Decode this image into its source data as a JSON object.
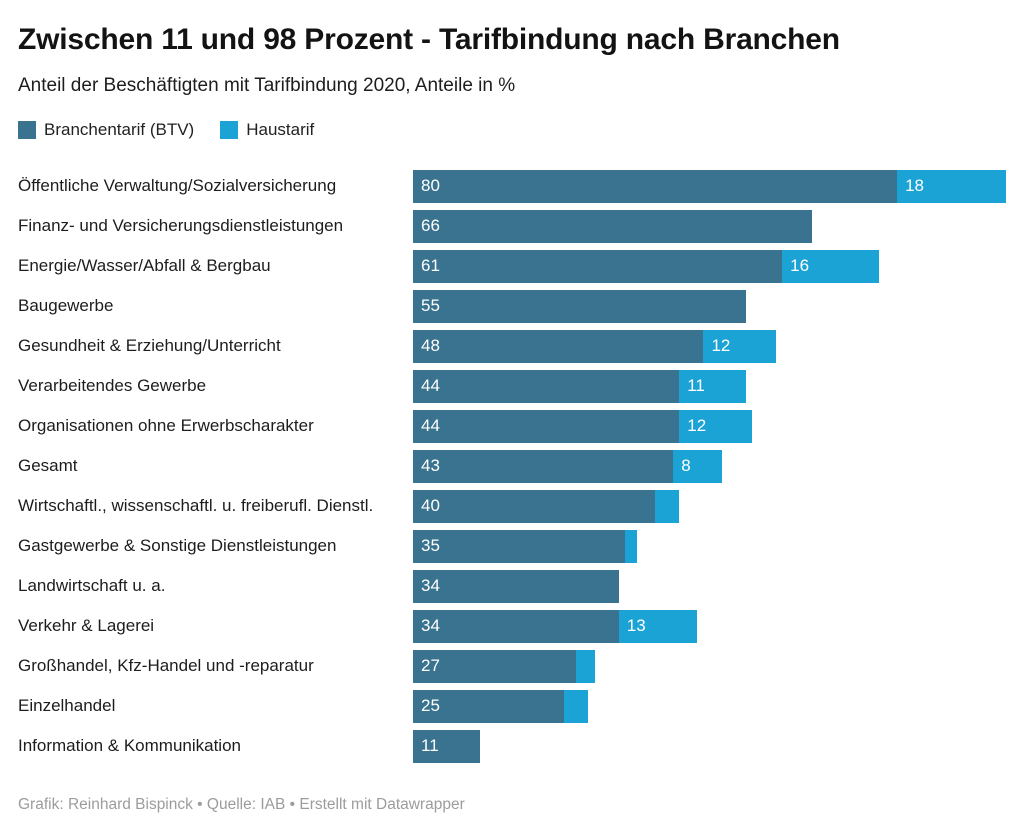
{
  "title": "Zwischen 11 und 98 Prozent - Tarifbindung nach Branchen",
  "subtitle": "Anteil der Beschäftigten mit Tarifbindung 2020, Anteile in %",
  "legend": [
    {
      "label": "Branchentarif (BTV)",
      "color": "#39738f"
    },
    {
      "label": "Haustarif",
      "color": "#1ca3d6"
    }
  ],
  "footer": "Grafik: Reinhard Bispinck • Quelle: IAB • Erstellt mit Datawrapper",
  "chart_data": {
    "type": "bar",
    "orientation": "horizontal",
    "stacked": true,
    "grid": false,
    "legend_position": "top-left",
    "xmax": 98,
    "label_min": 8,
    "categories": [
      "Öffentliche Verwaltung/Sozialversicherung",
      "Finanz- und Versicherungsdienstleistungen",
      "Energie/Wasser/Abfall & Bergbau",
      "Baugewerbe",
      "Gesundheit & Erziehung/Unterricht",
      "Verarbeitendes Gewerbe",
      "Organisationen ohne Erwerbscharakter",
      "Gesamt",
      "Wirtschaftl., wissenschaftl. u. freiberufl. Dienstl.",
      "Gastgewerbe & Sonstige Dienstleistungen",
      "Landwirtschaft u. a.",
      "Verkehr & Lagerei",
      "Großhandel, Kfz-Handel und -reparatur",
      "Einzelhandel",
      "Information & Kommunikation"
    ],
    "series": [
      {
        "name": "Branchentarif (BTV)",
        "color": "#39738f",
        "values": [
          80,
          66,
          61,
          55,
          48,
          44,
          44,
          43,
          40,
          35,
          34,
          34,
          27,
          25,
          11
        ]
      },
      {
        "name": "Haustarif",
        "color": "#1ca3d6",
        "values": [
          18,
          0,
          16,
          0,
          12,
          11,
          12,
          8,
          4,
          2,
          0,
          13,
          3,
          4,
          0
        ]
      }
    ]
  }
}
